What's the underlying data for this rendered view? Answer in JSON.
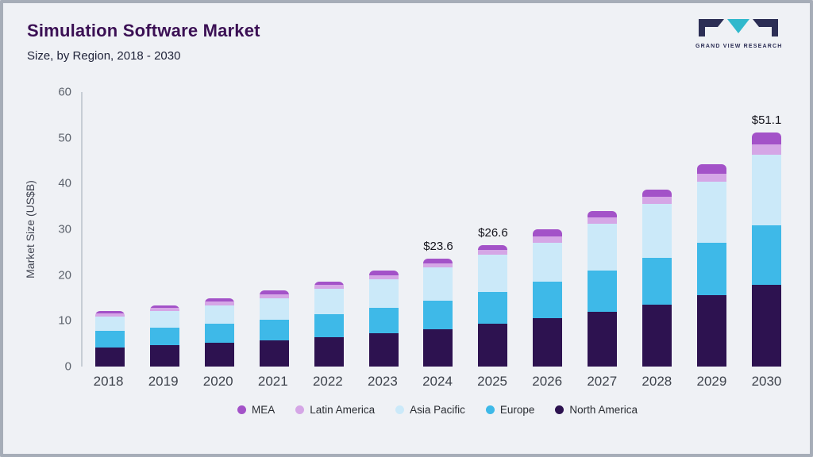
{
  "header": {
    "title": "Simulation Software Market",
    "subtitle": "Size, by Region, 2018 - 2030"
  },
  "logo": {
    "text": "GRAND VIEW RESEARCH",
    "accent_color": "#30b8cc",
    "dark_color": "#2c2e55"
  },
  "chart_data": {
    "type": "bar",
    "stacked": true,
    "title": "Simulation Software Market Size, by Region, 2018 - 2030",
    "xlabel": "",
    "ylabel": "Market Size (US$B)",
    "ylim": [
      0,
      60
    ],
    "yticks": [
      0,
      10,
      20,
      30,
      40,
      50,
      60
    ],
    "grid": false,
    "legend_position": "bottom",
    "categories": [
      "2018",
      "2019",
      "2020",
      "2021",
      "2022",
      "2023",
      "2024",
      "2025",
      "2026",
      "2027",
      "2028",
      "2029",
      "2030"
    ],
    "series": [
      {
        "name": "North America",
        "color": "#2d1250",
        "values": [
          4.2,
          4.7,
          5.2,
          5.8,
          6.5,
          7.3,
          8.2,
          9.3,
          10.5,
          11.9,
          13.5,
          15.6,
          17.9
        ]
      },
      {
        "name": "Europe",
        "color": "#3eb9e8",
        "values": [
          3.6,
          3.8,
          4.1,
          4.5,
          5.0,
          5.5,
          6.2,
          7.0,
          8.0,
          9.0,
          10.2,
          11.4,
          13.0
        ]
      },
      {
        "name": "Asia Pacific",
        "color": "#cbe9f9",
        "values": [
          3.2,
          3.6,
          4.1,
          4.7,
          5.5,
          6.2,
          7.2,
          8.1,
          8.6,
          10.3,
          11.9,
          13.4,
          15.4
        ]
      },
      {
        "name": "Latin America",
        "color": "#d5a6e6",
        "values": [
          0.6,
          0.65,
          0.8,
          0.8,
          0.8,
          1.0,
          1.0,
          1.1,
          1.4,
          1.4,
          1.5,
          1.8,
          2.2
        ]
      },
      {
        "name": "MEA",
        "color": "#a352c8",
        "values": [
          0.6,
          0.65,
          0.8,
          0.8,
          0.8,
          1.0,
          1.0,
          1.1,
          1.5,
          1.4,
          1.5,
          2.0,
          2.6
        ]
      }
    ],
    "bar_labels": {
      "2024": "$23.6",
      "2025": "$26.6",
      "2030": "$51.1"
    },
    "legend": [
      "MEA",
      "Latin America",
      "Asia Pacific",
      "Europe",
      "North America"
    ]
  }
}
